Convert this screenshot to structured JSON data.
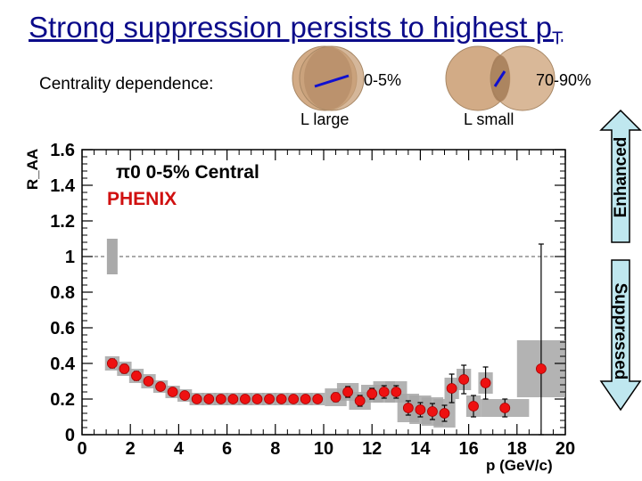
{
  "slide": {
    "title": "Strong suppression persists to highest p",
    "title_subscript": "T",
    "centrality_label": "Centrality dependence:",
    "central": {
      "percent": "0-5%",
      "length_label": "L large"
    },
    "peripheral": {
      "percent": "70-90%",
      "length_label": "L small"
    },
    "arrow_up_label": "Enhanced",
    "arrow_down_label": "Suppressed"
  },
  "chart_data": {
    "type": "scatter",
    "legend_text": "π0 0-5% Central",
    "experiment_label": "PHENIX",
    "xlabel": "p  (GeV/c)",
    "ylabel": "R_AA",
    "xlim": [
      0,
      20
    ],
    "ylim": [
      0,
      1.6
    ],
    "xticks": [
      "0",
      "2",
      "4",
      "6",
      "8",
      "10",
      "12",
      "14",
      "16",
      "18",
      "20"
    ],
    "yticks": [
      "0",
      "0.2",
      "0.4",
      "0.6",
      "0.8",
      "1",
      "1.2",
      "1.4",
      "1.6"
    ],
    "reference_line_y": 1,
    "normalization_box": {
      "x": 1.25,
      "y": 1.0,
      "half_height": 0.1
    },
    "series": [
      {
        "points": [
          {
            "x": 1.25,
            "y": 0.4,
            "err": 0.025,
            "sys_w": 0.6,
            "sys_h": 0.04
          },
          {
            "x": 1.75,
            "y": 0.37,
            "err": 0.025,
            "sys_w": 0.6,
            "sys_h": 0.04
          },
          {
            "x": 2.25,
            "y": 0.33,
            "err": 0.025,
            "sys_w": 0.6,
            "sys_h": 0.04
          },
          {
            "x": 2.75,
            "y": 0.3,
            "err": 0.02,
            "sys_w": 0.6,
            "sys_h": 0.04
          },
          {
            "x": 3.25,
            "y": 0.27,
            "err": 0.02,
            "sys_w": 0.6,
            "sys_h": 0.035
          },
          {
            "x": 3.75,
            "y": 0.24,
            "err": 0.015,
            "sys_w": 0.6,
            "sys_h": 0.035
          },
          {
            "x": 4.25,
            "y": 0.22,
            "err": 0.015,
            "sys_w": 0.6,
            "sys_h": 0.035
          },
          {
            "x": 4.75,
            "y": 0.2,
            "err": 0.015,
            "sys_w": 0.6,
            "sys_h": 0.035
          },
          {
            "x": 5.25,
            "y": 0.2,
            "err": 0.015,
            "sys_w": 0.6,
            "sys_h": 0.035
          },
          {
            "x": 5.75,
            "y": 0.2,
            "err": 0.015,
            "sys_w": 0.6,
            "sys_h": 0.035
          },
          {
            "x": 6.25,
            "y": 0.2,
            "err": 0.015,
            "sys_w": 0.6,
            "sys_h": 0.035
          },
          {
            "x": 6.75,
            "y": 0.2,
            "err": 0.015,
            "sys_w": 0.6,
            "sys_h": 0.035
          },
          {
            "x": 7.25,
            "y": 0.2,
            "err": 0.015,
            "sys_w": 0.6,
            "sys_h": 0.035
          },
          {
            "x": 7.75,
            "y": 0.2,
            "err": 0.015,
            "sys_w": 0.6,
            "sys_h": 0.035
          },
          {
            "x": 8.25,
            "y": 0.2,
            "err": 0.015,
            "sys_w": 0.6,
            "sys_h": 0.035
          },
          {
            "x": 8.75,
            "y": 0.2,
            "err": 0.015,
            "sys_w": 0.6,
            "sys_h": 0.035
          },
          {
            "x": 9.25,
            "y": 0.2,
            "err": 0.015,
            "sys_w": 0.6,
            "sys_h": 0.035
          },
          {
            "x": 9.75,
            "y": 0.2,
            "err": 0.015,
            "sys_w": 0.6,
            "sys_h": 0.035
          },
          {
            "x": 10.5,
            "y": 0.21,
            "err": 0.025,
            "sys_w": 0.9,
            "sys_h": 0.05
          },
          {
            "x": 11.0,
            "y": 0.24,
            "err": 0.03,
            "sys_w": 0.9,
            "sys_h": 0.05
          },
          {
            "x": 11.5,
            "y": 0.19,
            "err": 0.03,
            "sys_w": 0.9,
            "sys_h": 0.05
          },
          {
            "x": 12.0,
            "y": 0.23,
            "err": 0.03,
            "sys_w": 0.9,
            "sys_h": 0.05
          },
          {
            "x": 12.5,
            "y": 0.24,
            "err": 0.035,
            "sys_w": 0.9,
            "sys_h": 0.06
          },
          {
            "x": 13.0,
            "y": 0.24,
            "err": 0.035,
            "sys_w": 0.9,
            "sys_h": 0.06
          },
          {
            "x": 13.5,
            "y": 0.15,
            "err": 0.04,
            "sys_w": 0.9,
            "sys_h": 0.08
          },
          {
            "x": 14.0,
            "y": 0.14,
            "err": 0.04,
            "sys_w": 0.9,
            "sys_h": 0.08
          },
          {
            "x": 14.5,
            "y": 0.13,
            "err": 0.045,
            "sys_w": 0.9,
            "sys_h": 0.08
          },
          {
            "x": 15.0,
            "y": 0.12,
            "err": 0.045,
            "sys_w": 0.9,
            "sys_h": 0.08
          },
          {
            "x": 15.3,
            "y": 0.26,
            "err": 0.08,
            "sys_w": 0.6,
            "sys_h": 0.06
          },
          {
            "x": 15.8,
            "y": 0.31,
            "err": 0.08,
            "sys_w": 0.6,
            "sys_h": 0.06
          },
          {
            "x": 16.2,
            "y": 0.16,
            "err": 0.06,
            "sys_w": 0.6,
            "sys_h": 0.06
          },
          {
            "x": 16.7,
            "y": 0.29,
            "err": 0.09,
            "sys_w": 0.6,
            "sys_h": 0.06
          },
          {
            "x": 17.5,
            "y": 0.15,
            "err": 0.05,
            "sys_w": 2.0,
            "sys_h": 0.05
          },
          {
            "x": 19.0,
            "y": 0.37,
            "err": 0.7,
            "sys_w": 2.0,
            "sys_h": 0.16
          }
        ]
      }
    ]
  }
}
